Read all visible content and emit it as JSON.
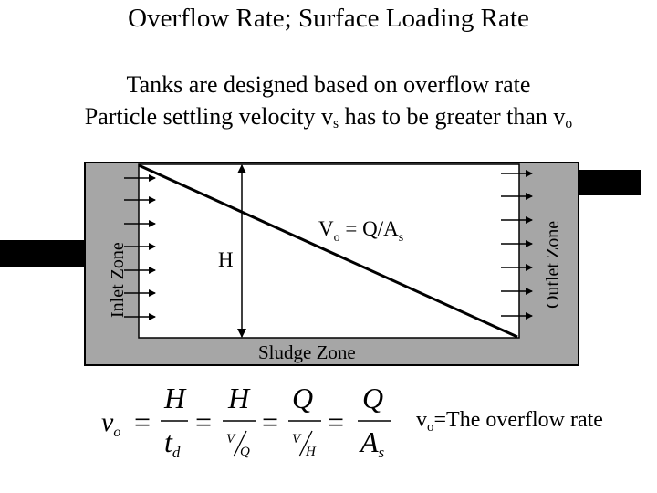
{
  "title": "Overflow Rate; Surface Loading Rate",
  "subtitle_line1": "Tanks are designed based on overflow rate",
  "subtitle_line2": {
    "text": "Particle settling velocity v",
    "sub": "s",
    "text2": " has to be greater than v",
    "sub2": "o"
  },
  "diagram": {
    "inlet_label": "Inlet Zone",
    "outlet_label": "Outlet Zone",
    "sludge_label": "Sludge Zone",
    "height_label": "H",
    "velocity_eq": {
      "v": "V",
      "sub": "o",
      "rest": " = Q/A",
      "sub2": "s"
    }
  },
  "formula": {
    "lhs": "v",
    "lhs_sub": "o",
    "t1_num": "H",
    "t1_den": "t",
    "t1_den_sub": "d",
    "t2_num": "H",
    "t2_den_a": "V",
    "t2_den_b": "Q",
    "t3_num": "Q",
    "t3_den_a": "V",
    "t3_den_b": "H",
    "t4_num": "Q",
    "t4_den": "A",
    "t4_den_sub": "s",
    "eq": "=",
    "definition": {
      "v": "v",
      "sub": "o",
      "rest": "=The overflow rate"
    }
  },
  "colors": {
    "tank_wall": "#a6a6a6",
    "pipe": "#000000",
    "background": "#ffffff"
  }
}
